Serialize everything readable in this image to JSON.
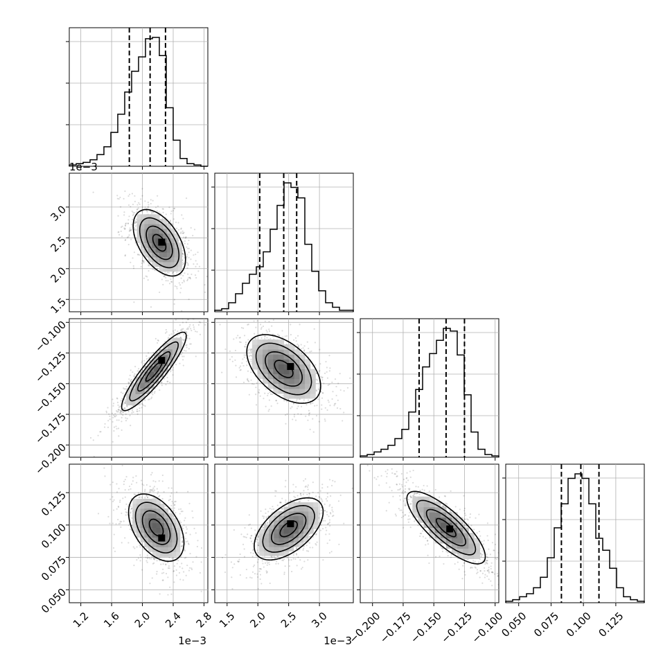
{
  "chart_data": {
    "type": "corner",
    "grid": true,
    "parameters": [
      {
        "range": [
          1.05,
          2.85
        ],
        "ticks": [
          1.2,
          1.6,
          2.0,
          2.4,
          2.8
        ],
        "tick_labels": [
          "1.2",
          "1.6",
          "2.0",
          "2.4",
          "2.8"
        ],
        "offset_label": "1e−3",
        "quantiles": [
          1.83,
          2.1,
          2.3
        ],
        "peak": 2.2,
        "sigma": 0.19,
        "skew": "left"
      },
      {
        "range": [
          1.3,
          3.55
        ],
        "ticks": [
          1.5,
          2.0,
          2.5,
          3.0
        ],
        "tick_labels": [
          "1.5",
          "2.0",
          "2.5",
          "3.0"
        ],
        "offset_label": "1e−3",
        "quantiles": [
          2.03,
          2.42,
          2.63
        ],
        "peak": 2.5,
        "sigma": 0.28,
        "skew": "left"
      },
      {
        "range": [
          -0.21,
          -0.097
        ],
        "ticks": [
          -0.2,
          -0.175,
          -0.15,
          -0.125,
          -0.1
        ],
        "tick_labels": [
          "−0.200",
          "−0.175",
          "−0.150",
          "−0.125",
          "−0.100"
        ],
        "offset_label": "",
        "quantiles": [
          -0.162,
          -0.14,
          -0.125
        ],
        "peak": -0.135,
        "sigma": 0.015,
        "skew": "left"
      },
      {
        "range": [
          0.04,
          0.147
        ],
        "ticks": [
          0.05,
          0.075,
          0.1,
          0.125
        ],
        "tick_labels": [
          "0.050",
          "0.075",
          "0.100",
          "0.125"
        ],
        "offset_label": "",
        "quantiles": [
          0.083,
          0.098,
          0.112
        ],
        "peak": 0.097,
        "sigma": 0.0135,
        "skew": "none"
      }
    ],
    "histograms": [
      {
        "param": 0,
        "bin_edges": [
          1.05,
          1.14,
          1.23,
          1.32,
          1.41,
          1.5,
          1.59,
          1.68,
          1.77,
          1.86,
          1.95,
          2.04,
          2.13,
          2.22,
          2.31,
          2.4,
          2.49,
          2.58,
          2.67,
          2.76,
          2.85
        ],
        "counts": [
          1,
          2,
          3,
          5,
          9,
          15,
          26,
          40,
          57,
          73,
          84,
          98,
          99,
          85,
          45,
          20,
          6,
          2,
          1,
          0
        ]
      },
      {
        "param": 1,
        "bin_edges": [
          1.3,
          1.4125,
          1.525,
          1.6375,
          1.75,
          1.8625,
          1.975,
          2.0875,
          2.2,
          2.3125,
          2.425,
          2.5375,
          2.65,
          2.7625,
          2.875,
          2.9875,
          3.1,
          3.2125,
          3.325,
          3.4375,
          3.55
        ],
        "counts": [
          1,
          2,
          6,
          12,
          19,
          25,
          30,
          40,
          55,
          71,
          86,
          83,
          76,
          45,
          27,
          14,
          6,
          3,
          1,
          1
        ]
      },
      {
        "param": 2,
        "bin_edges": [
          -0.21,
          -0.20435,
          -0.1987,
          -0.19305,
          -0.1874,
          -0.18175,
          -0.1761,
          -0.17045,
          -0.1648,
          -0.15915,
          -0.1535,
          -0.14785,
          -0.1422,
          -0.13655,
          -0.1309,
          -0.12525,
          -0.1196,
          -0.11395,
          -0.1083,
          -0.10265,
          -0.097
        ],
        "counts": [
          1,
          2,
          4,
          6,
          9,
          14,
          21,
          34,
          51,
          68,
          78,
          88,
          97,
          95,
          77,
          47,
          19,
          6,
          2,
          1
        ]
      },
      {
        "param": 3,
        "bin_edges": [
          0.04,
          0.04535,
          0.0507,
          0.05605,
          0.0614,
          0.06675,
          0.0721,
          0.07745,
          0.0828,
          0.08815,
          0.0935,
          0.09885,
          0.1042,
          0.10955,
          0.1149,
          0.12025,
          0.1256,
          0.13095,
          0.1363,
          0.14165,
          0.147
        ],
        "counts": [
          1,
          2,
          4,
          6,
          10,
          17,
          30,
          50,
          66,
          83,
          86,
          83,
          66,
          43,
          35,
          23,
          10,
          4,
          2,
          1
        ]
      }
    ],
    "pairs": [
      {
        "x_param": 0,
        "y_param": 1,
        "mean": [
          2.22,
          2.42
        ],
        "sd": [
          0.17,
          0.27
        ],
        "correlation": -0.5,
        "density_peak": [
          2.25,
          2.43
        ]
      },
      {
        "x_param": 0,
        "y_param": 2,
        "mean": [
          2.15,
          -0.14
        ],
        "sd": [
          0.21,
          0.016
        ],
        "correlation": 0.9,
        "density_peak": [
          2.25,
          -0.131
        ]
      },
      {
        "x_param": 1,
        "y_param": 2,
        "mean": [
          2.42,
          -0.138
        ],
        "sd": [
          0.3,
          0.014
        ],
        "correlation": -0.5,
        "density_peak": [
          2.53,
          -0.136
        ]
      },
      {
        "x_param": 0,
        "y_param": 3,
        "mean": [
          2.18,
          0.098
        ],
        "sd": [
          0.18,
          0.013
        ],
        "correlation": -0.45,
        "density_peak": [
          2.25,
          0.09
        ]
      },
      {
        "x_param": 1,
        "y_param": 3,
        "mean": [
          2.5,
          0.097
        ],
        "sd": [
          0.28,
          0.012
        ],
        "correlation": 0.55,
        "density_peak": [
          2.53,
          0.101
        ]
      },
      {
        "x_param": 2,
        "y_param": 3,
        "mean": [
          -0.14,
          0.098
        ],
        "sd": [
          0.016,
          0.014
        ],
        "correlation": -0.8,
        "density_peak": [
          -0.137,
          0.097
        ]
      }
    ],
    "contour_levels_sigma": [
      0.5,
      1.0,
      1.5,
      2.0
    ]
  }
}
